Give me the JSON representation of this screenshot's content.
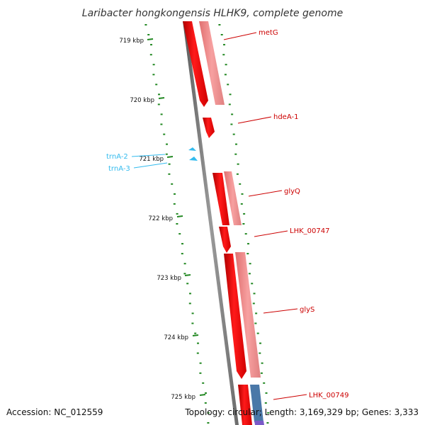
{
  "title": "Laribacter hongkongensis HLHK9, complete genome",
  "footer": {
    "accession": "Accession: NC_012559",
    "summary": "Topology: circular; Length: 3,169,329 bp; Genes: 3,333"
  },
  "ticks": [
    "719 kbp",
    "720 kbp",
    "721 kbp",
    "722 kbp",
    "723 kbp",
    "724 kbp",
    "725 kbp"
  ],
  "genes": [
    {
      "name": "metG",
      "color": "#cc0000"
    },
    {
      "name": "hdeA-1",
      "color": "#cc0000"
    },
    {
      "name": "trnA-2",
      "color": "#33bbee"
    },
    {
      "name": "trnA-3",
      "color": "#33bbee"
    },
    {
      "name": "glyQ",
      "color": "#cc0000"
    },
    {
      "name": "LHK_00747",
      "color": "#cc0000"
    },
    {
      "name": "glyS",
      "color": "#cc0000"
    },
    {
      "name": "LHK_00749",
      "color": "#cc0000"
    }
  ],
  "colors": {
    "cds": "#ff0000",
    "cds_light": "#f08888",
    "trna": "#33bbee",
    "backbone": "#808080",
    "dots": "#228822",
    "blue_feature": "#4a78a8",
    "purple_feature": "#7a5ac8"
  }
}
